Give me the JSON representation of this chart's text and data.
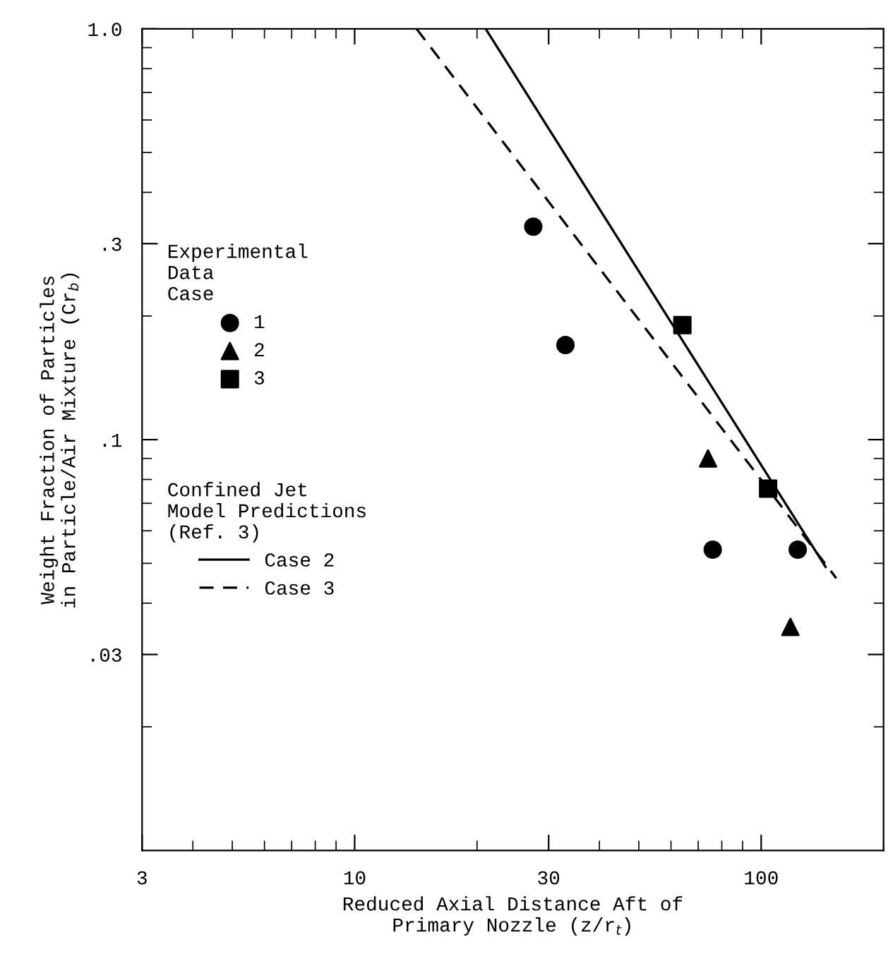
{
  "chart_data": {
    "type": "scatter",
    "xlabel": "Reduced Axial Distance Aft of\nPrimary Nozzle (z/r$_{t}$)",
    "ylabel": "Weight Fraction of Particles\nin Particle/Air Mixture (Cr$_{b}$)",
    "legend_title": "Experimental\nData\nCase",
    "annotations": [
      "Confined Jet\nModel Predictions\n(Ref. 3)"
    ],
    "log": "xy",
    "legend": "left",
    "grid": false,
    "xlim": [
      3,
      200
    ],
    "ylim": [
      0.01,
      1.0
    ],
    "xticks": [
      3,
      10,
      30,
      100
    ],
    "yticks": [
      {
        "value": 1.0,
        "label": "1.0"
      },
      {
        "value": 0.3,
        "label": ".3"
      },
      {
        "value": 0.1,
        "label": ".1"
      },
      {
        "value": 0.03,
        "label": ".03"
      }
    ],
    "series": [
      {
        "name": "1",
        "color": "#000000",
        "marker": "circle",
        "x": [
          27.5,
          33,
          76,
          123
        ],
        "values": [
          0.33,
          0.17,
          0.054,
          0.054
        ]
      },
      {
        "name": "2",
        "color": "#000000",
        "marker": "triangle",
        "x": [
          74,
          118
        ],
        "values": [
          0.09,
          0.035
        ]
      },
      {
        "name": "3",
        "color": "#000000",
        "marker": "square",
        "x": [
          64,
          104
        ],
        "values": [
          0.19,
          0.076
        ]
      },
      {
        "name": "Case 2",
        "type": "line",
        "color": "#000000",
        "line_style": "solid",
        "x": [
          21,
          144
        ],
        "values": [
          1.0,
          0.049
        ]
      },
      {
        "name": "Case 3",
        "type": "line",
        "color": "#000000",
        "line_style": "dashed",
        "x": [
          14.2,
          153
        ],
        "values": [
          1.0,
          0.046
        ]
      }
    ]
  }
}
